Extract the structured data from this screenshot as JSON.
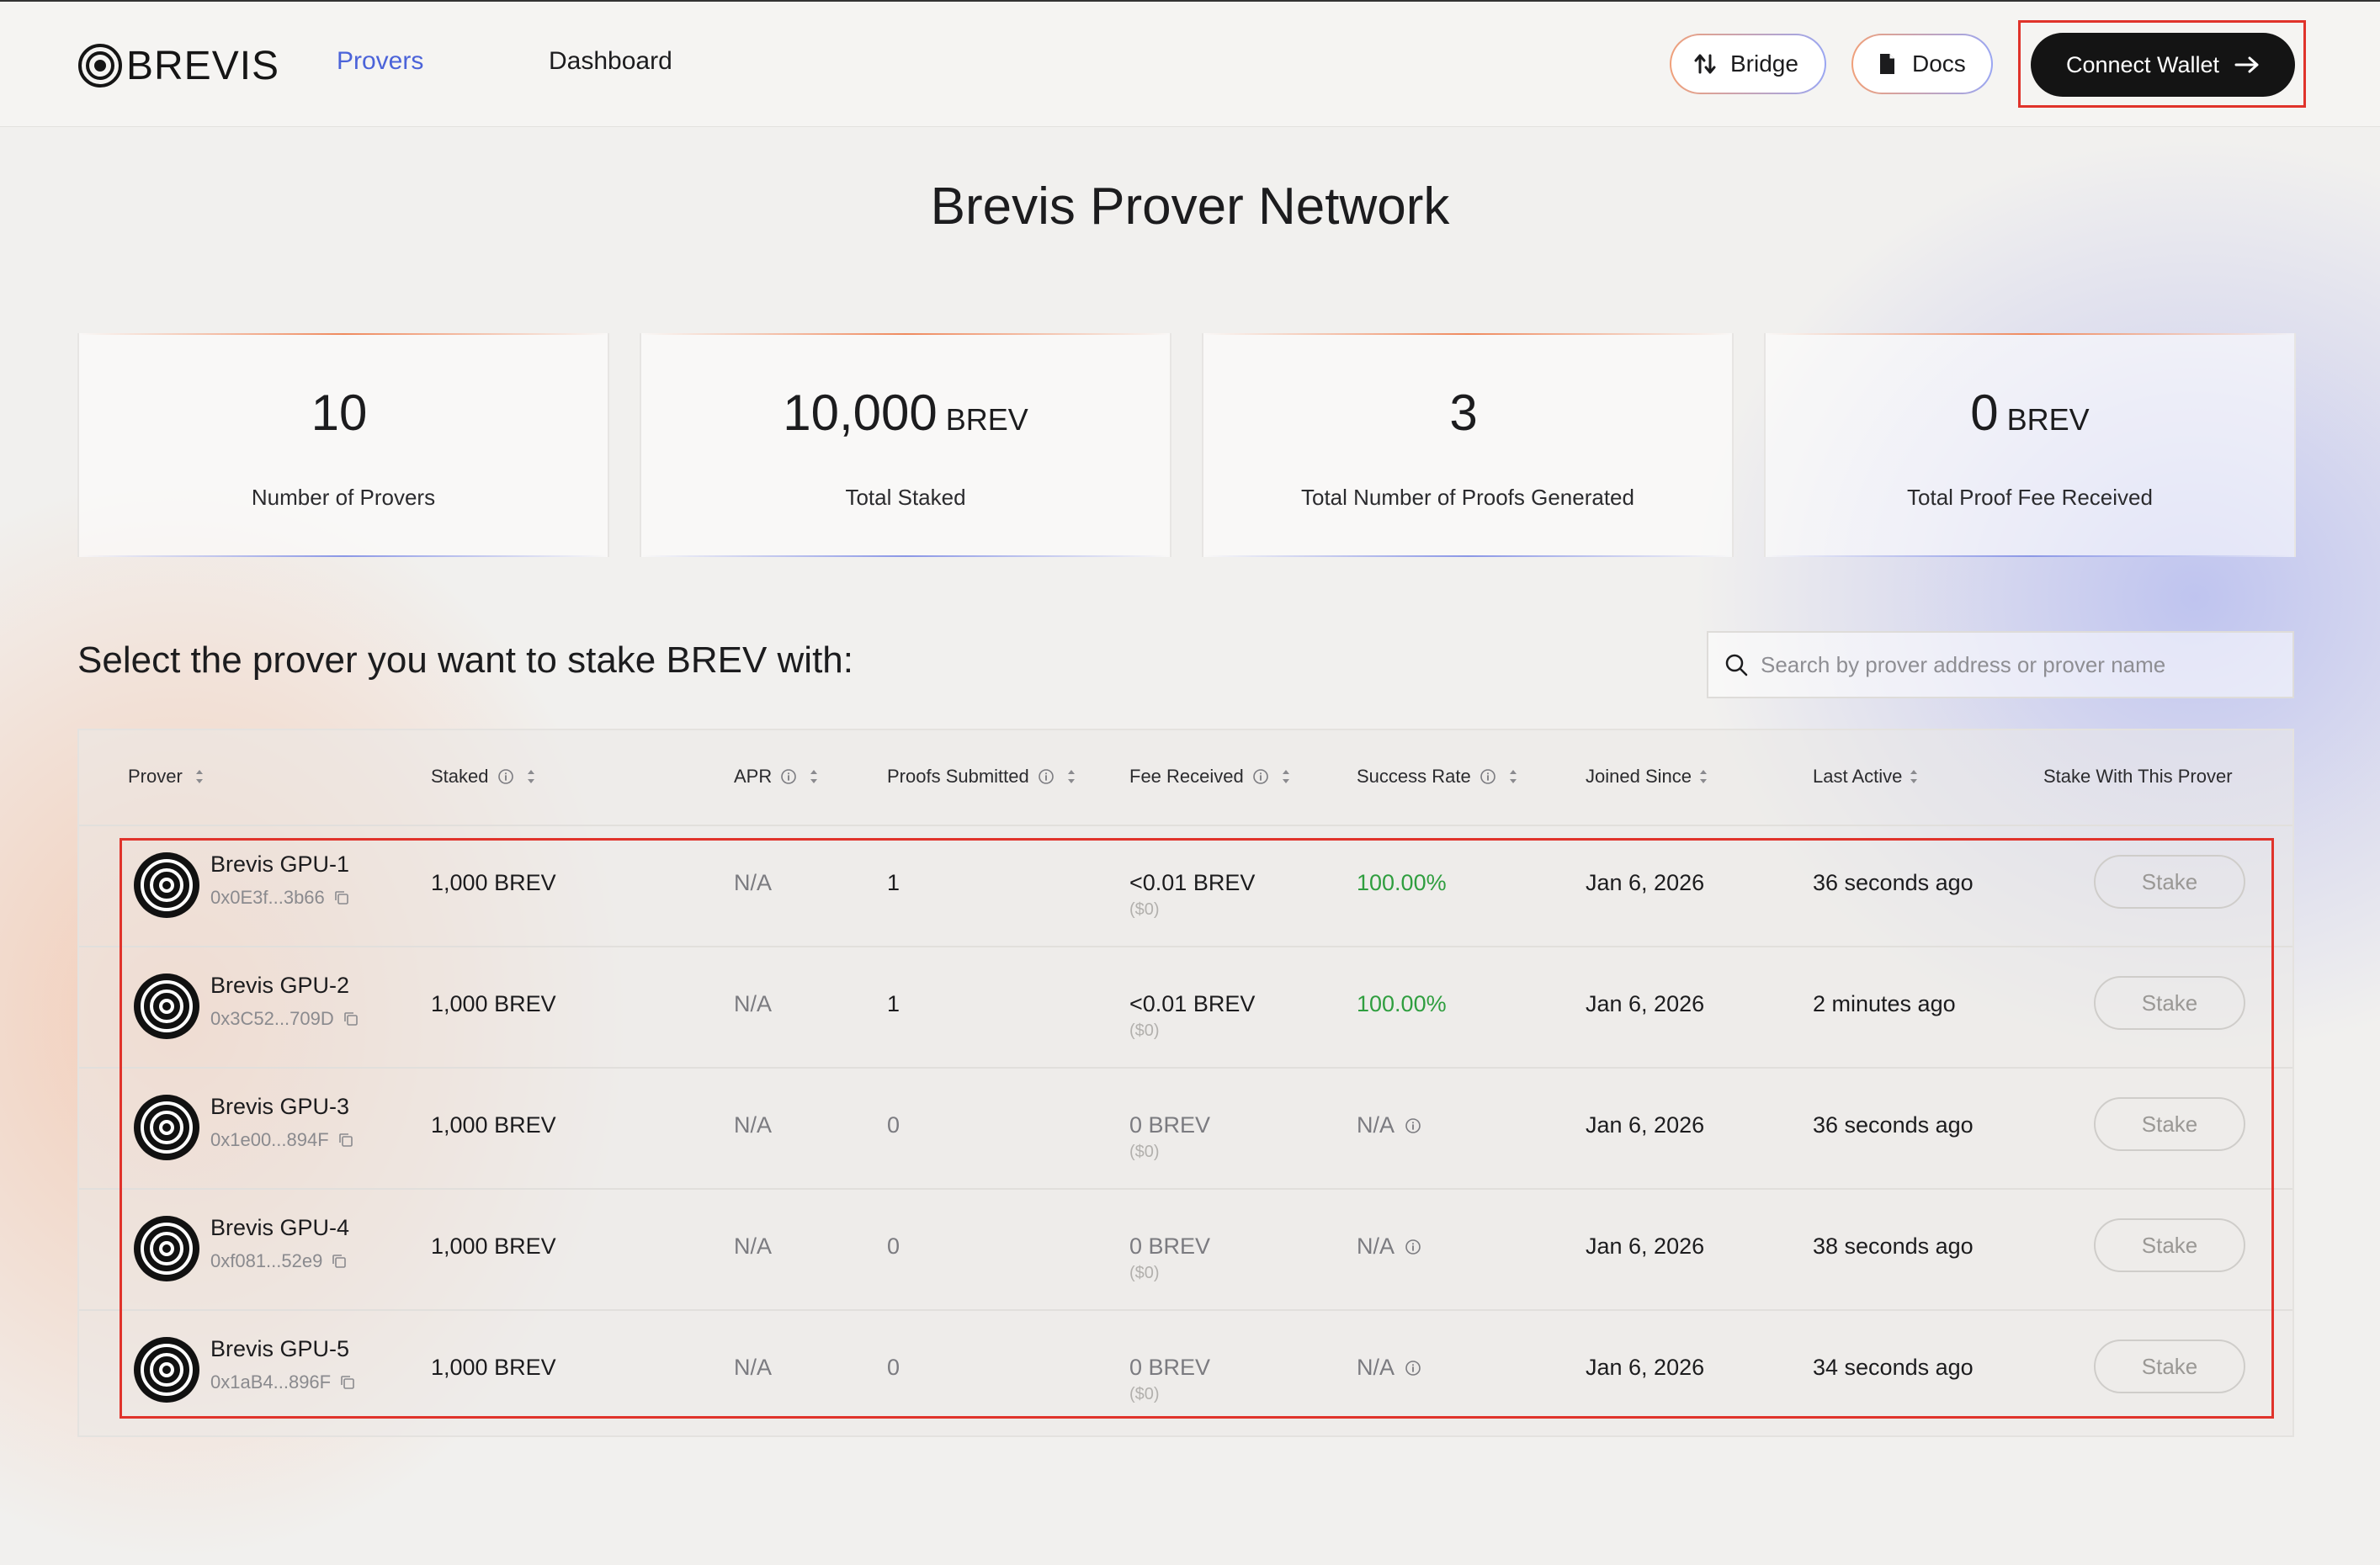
{
  "header": {
    "logo_text": "BREVIS",
    "nav": [
      {
        "label": "Provers",
        "active": true
      },
      {
        "label": "Dashboard",
        "active": false
      }
    ],
    "bridge_label": "Bridge",
    "docs_label": "Docs",
    "connect_label": "Connect Wallet"
  },
  "page_title": "Brevis Prover Network",
  "stats": [
    {
      "value": "10",
      "unit": "",
      "label": "Number of Provers"
    },
    {
      "value": "10,000",
      "unit": "BREV",
      "label": "Total Staked"
    },
    {
      "value": "3",
      "unit": "",
      "label": "Total Number of Proofs Generated"
    },
    {
      "value": "0",
      "unit": "BREV",
      "label": "Total Proof Fee Received"
    }
  ],
  "section_title": "Select the prover you want to stake BREV with:",
  "search": {
    "placeholder": "Search by prover address or prover name"
  },
  "table": {
    "columns": {
      "prover": "Prover",
      "staked": "Staked",
      "apr": "APR",
      "proofs": "Proofs Submitted",
      "fee": "Fee Received",
      "success": "Success Rate",
      "joined": "Joined Since",
      "last_active": "Last Active",
      "stake": "Stake With This Prover"
    },
    "rows": [
      {
        "name": "Brevis GPU-1",
        "address": "0x0E3f...3b66",
        "staked": "1,000 BREV",
        "apr": "N/A",
        "proofs": "1",
        "fee": "<0.01 BREV",
        "fee_usd": "($0)",
        "success": "100.00%",
        "joined": "Jan 6, 2026",
        "last_active": "36 seconds ago",
        "stake_label": "Stake"
      },
      {
        "name": "Brevis GPU-2",
        "address": "0x3C52...709D",
        "staked": "1,000 BREV",
        "apr": "N/A",
        "proofs": "1",
        "fee": "<0.01 BREV",
        "fee_usd": "($0)",
        "success": "100.00%",
        "joined": "Jan 6, 2026",
        "last_active": "2 minutes ago",
        "stake_label": "Stake"
      },
      {
        "name": "Brevis GPU-3",
        "address": "0x1e00...894F",
        "staked": "1,000 BREV",
        "apr": "N/A",
        "proofs": "0",
        "fee": "0 BREV",
        "fee_usd": "($0)",
        "success": "N/A",
        "joined": "Jan 6, 2026",
        "last_active": "36 seconds ago",
        "stake_label": "Stake"
      },
      {
        "name": "Brevis GPU-4",
        "address": "0xf081...52e9",
        "staked": "1,000 BREV",
        "apr": "N/A",
        "proofs": "0",
        "fee": "0 BREV",
        "fee_usd": "($0)",
        "success": "N/A",
        "joined": "Jan 6, 2026",
        "last_active": "38 seconds ago",
        "stake_label": "Stake"
      },
      {
        "name": "Brevis GPU-5",
        "address": "0x1aB4...896F",
        "staked": "1,000 BREV",
        "apr": "N/A",
        "proofs": "0",
        "fee": "0 BREV",
        "fee_usd": "($0)",
        "success": "N/A",
        "joined": "Jan 6, 2026",
        "last_active": "34 seconds ago",
        "stake_label": "Stake"
      }
    ]
  },
  "colors": {
    "accent": "#4b63d9",
    "success": "#2f9e3f",
    "highlight": "#e0332b"
  },
  "icons": [
    "brevis-logo-icon",
    "bridge-swap-icon",
    "docs-icon",
    "arrow-right-icon",
    "search-icon",
    "info-icon",
    "sort-icon",
    "copy-icon",
    "prover-avatar-icon"
  ]
}
